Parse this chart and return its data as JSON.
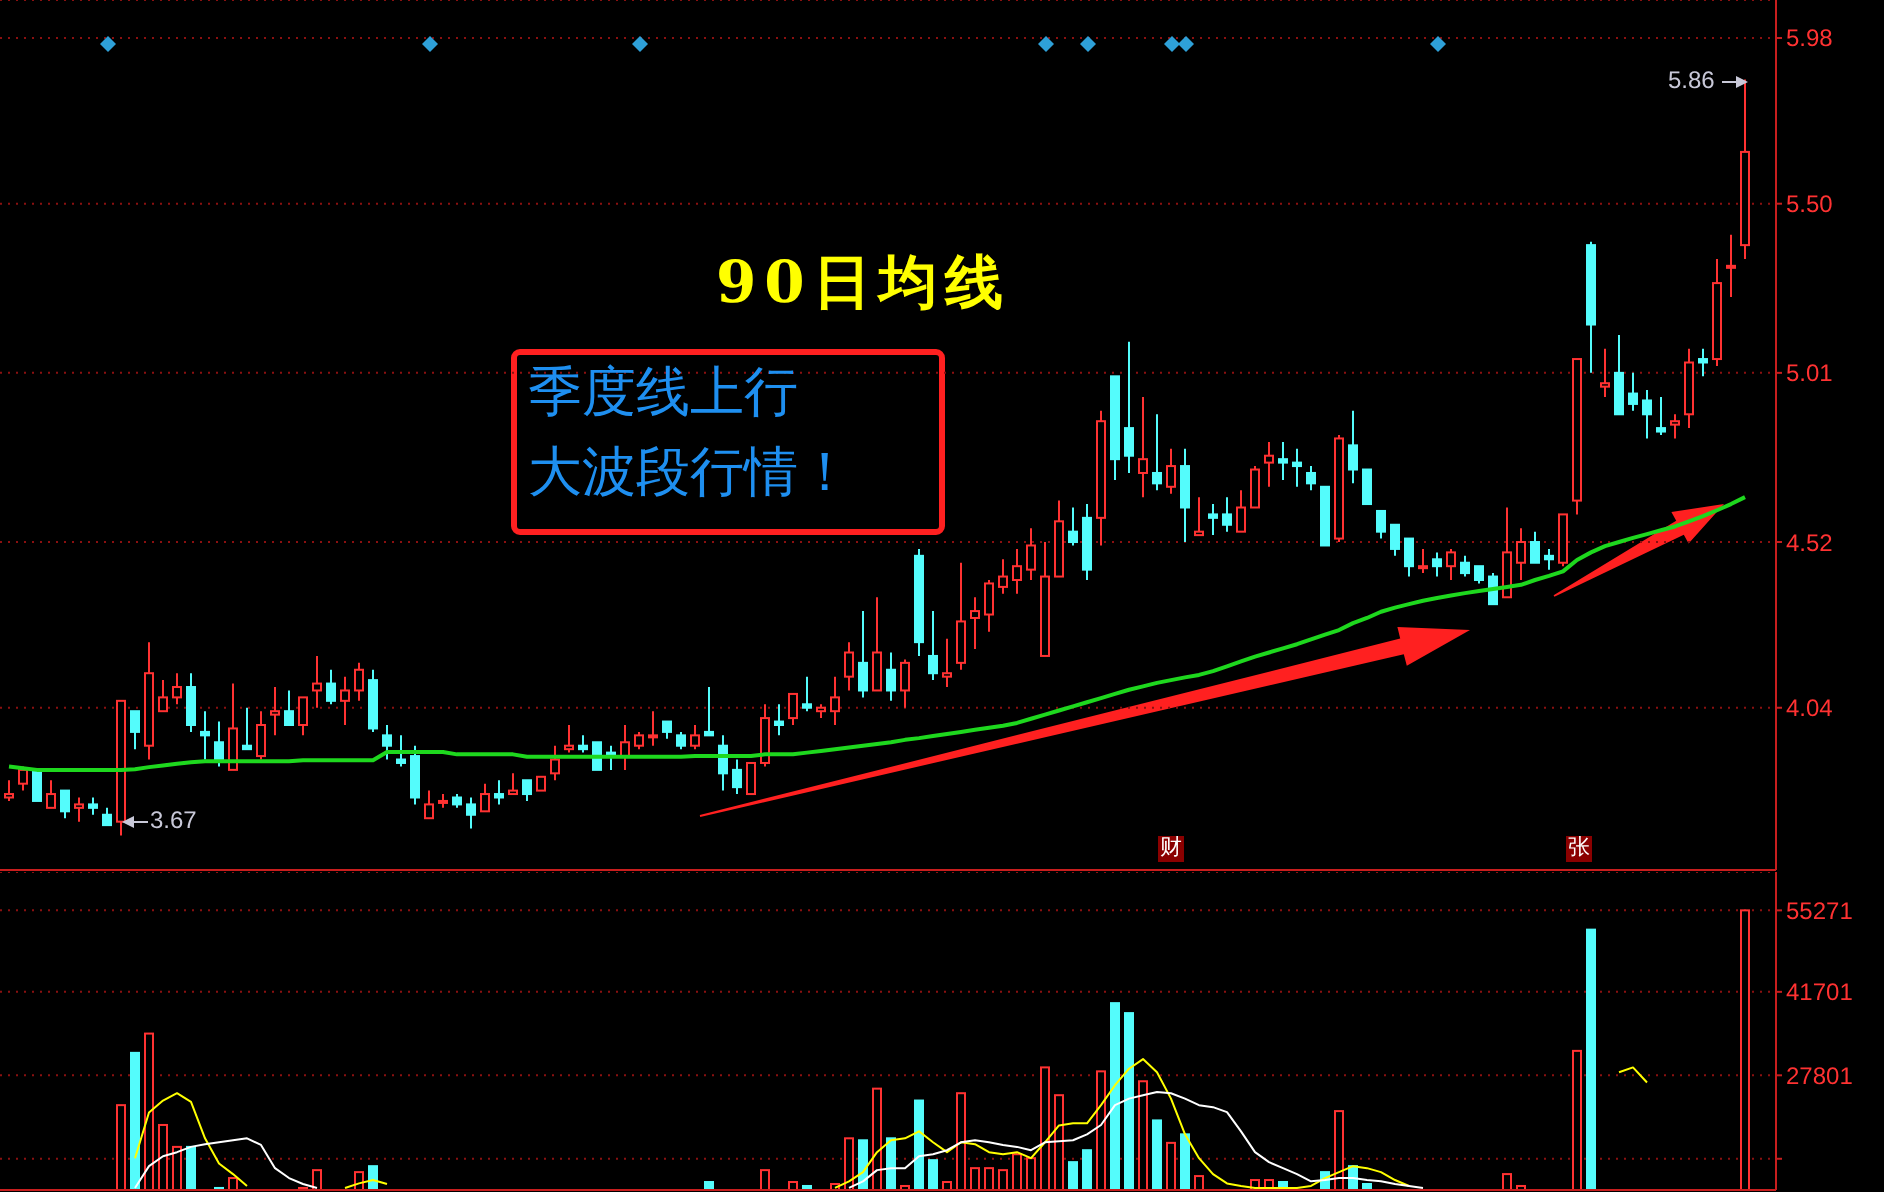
{
  "chart_data": [
    {
      "type": "candlestick",
      "categories": [
        null,
        null,
        null,
        null,
        null,
        null,
        null,
        null,
        null,
        null,
        null,
        null,
        null,
        null,
        null,
        null,
        null,
        null,
        null,
        null,
        null,
        null,
        null,
        null,
        null,
        null,
        null,
        null,
        null,
        null,
        null,
        null,
        null,
        null,
        null,
        null,
        null,
        null,
        null,
        null,
        null,
        null,
        null,
        null,
        null,
        null,
        null,
        null,
        null,
        null,
        null,
        null,
        null,
        null,
        null,
        null,
        null,
        null,
        null,
        null,
        null,
        null,
        null,
        null,
        null,
        null,
        null,
        null,
        null,
        null,
        null,
        null,
        null,
        null,
        null,
        null,
        null,
        null,
        null,
        null,
        null,
        null,
        null,
        null,
        null,
        null,
        null,
        null,
        null,
        null,
        null,
        null,
        null,
        null,
        null,
        null,
        null,
        null,
        null,
        null,
        null,
        null,
        null,
        null,
        null,
        null,
        null,
        null,
        null,
        null,
        null,
        null,
        null,
        null,
        null,
        null,
        null,
        null,
        null,
        null,
        null,
        null,
        null,
        null,
        null
      ],
      "ohlc": [
        [
          3.78,
          3.83,
          3.77,
          3.79
        ],
        [
          3.82,
          3.87,
          3.8,
          3.86
        ],
        [
          3.86,
          3.86,
          3.77,
          3.77
        ],
        [
          3.75,
          3.83,
          3.75,
          3.79
        ],
        [
          3.8,
          3.8,
          3.72,
          3.74
        ],
        [
          3.75,
          3.78,
          3.71,
          3.76
        ],
        [
          3.76,
          3.78,
          3.73,
          3.75
        ],
        [
          3.73,
          3.75,
          3.7,
          3.7
        ],
        [
          3.71,
          4.06,
          3.67,
          4.06
        ],
        [
          4.03,
          4.03,
          3.92,
          3.97
        ],
        [
          3.93,
          4.23,
          3.89,
          4.14
        ],
        [
          4.03,
          4.12,
          4.03,
          4.07
        ],
        [
          4.07,
          4.14,
          4.05,
          4.1
        ],
        [
          4.1,
          4.14,
          3.97,
          3.99
        ],
        [
          3.97,
          4.03,
          3.89,
          3.96
        ],
        [
          3.94,
          4.0,
          3.87,
          3.89
        ],
        [
          3.86,
          4.11,
          3.86,
          3.98
        ],
        [
          3.93,
          4.04,
          3.92,
          3.92
        ],
        [
          3.9,
          4.03,
          3.89,
          3.99
        ],
        [
          4.02,
          4.1,
          3.96,
          4.03
        ],
        [
          4.03,
          4.09,
          3.99,
          3.99
        ],
        [
          3.99,
          4.07,
          3.96,
          4.07
        ],
        [
          4.09,
          4.19,
          4.04,
          4.11
        ],
        [
          4.11,
          4.15,
          4.05,
          4.06
        ],
        [
          4.06,
          4.13,
          3.99,
          4.09
        ],
        [
          4.09,
          4.17,
          4.06,
          4.15
        ],
        [
          4.12,
          4.15,
          3.97,
          3.98
        ],
        [
          3.96,
          3.99,
          3.89,
          3.93
        ],
        [
          3.89,
          3.96,
          3.87,
          3.88
        ],
        [
          3.9,
          3.93,
          3.76,
          3.78
        ],
        [
          3.72,
          3.8,
          3.72,
          3.76
        ],
        [
          3.77,
          3.79,
          3.75,
          3.77
        ],
        [
          3.78,
          3.79,
          3.75,
          3.76
        ],
        [
          3.76,
          3.78,
          3.69,
          3.73
        ],
        [
          3.74,
          3.82,
          3.74,
          3.79
        ],
        [
          3.79,
          3.83,
          3.76,
          3.78
        ],
        [
          3.79,
          3.85,
          3.79,
          3.8
        ],
        [
          3.83,
          3.83,
          3.77,
          3.79
        ],
        [
          3.8,
          3.84,
          3.8,
          3.84
        ],
        [
          3.85,
          3.93,
          3.83,
          3.89
        ],
        [
          3.92,
          3.99,
          3.91,
          3.93
        ],
        [
          3.93,
          3.96,
          3.91,
          3.92
        ],
        [
          3.94,
          3.94,
          3.86,
          3.86
        ],
        [
          3.91,
          3.93,
          3.86,
          3.9
        ],
        [
          3.9,
          3.99,
          3.86,
          3.94
        ],
        [
          3.93,
          3.97,
          3.92,
          3.96
        ],
        [
          3.96,
          4.03,
          3.93,
          3.96
        ],
        [
          4.0,
          4.0,
          3.95,
          3.97
        ],
        [
          3.96,
          3.97,
          3.92,
          3.93
        ],
        [
          3.93,
          3.99,
          3.92,
          3.96
        ],
        [
          3.97,
          4.1,
          3.96,
          3.96
        ],
        [
          3.93,
          3.96,
          3.8,
          3.85
        ],
        [
          3.86,
          3.89,
          3.79,
          3.81
        ],
        [
          3.79,
          3.88,
          3.79,
          3.88
        ],
        [
          3.88,
          4.05,
          3.87,
          4.01
        ],
        [
          4.0,
          4.05,
          3.96,
          3.99
        ],
        [
          4.01,
          4.08,
          3.99,
          4.08
        ],
        [
          4.05,
          4.13,
          4.03,
          4.04
        ],
        [
          4.03,
          4.05,
          4.01,
          4.04
        ],
        [
          4.03,
          4.13,
          3.99,
          4.07
        ],
        [
          4.13,
          4.23,
          4.09,
          4.2
        ],
        [
          4.17,
          4.32,
          4.07,
          4.09
        ],
        [
          4.09,
          4.36,
          4.09,
          4.2
        ],
        [
          4.15,
          4.2,
          4.06,
          4.09
        ],
        [
          4.09,
          4.18,
          4.04,
          4.17
        ],
        [
          4.48,
          4.5,
          4.19,
          4.23
        ],
        [
          4.19,
          4.32,
          4.12,
          4.14
        ],
        [
          4.13,
          4.24,
          4.1,
          4.14
        ],
        [
          4.17,
          4.46,
          4.15,
          4.29
        ],
        [
          4.3,
          4.36,
          4.21,
          4.32
        ],
        [
          4.31,
          4.41,
          4.26,
          4.4
        ],
        [
          4.39,
          4.47,
          4.37,
          4.42
        ],
        [
          4.41,
          4.5,
          4.37,
          4.45
        ],
        [
          4.44,
          4.56,
          4.41,
          4.51
        ],
        [
          4.19,
          4.52,
          4.19,
          4.42
        ],
        [
          4.42,
          4.64,
          4.42,
          4.58
        ],
        [
          4.55,
          4.62,
          4.51,
          4.52
        ],
        [
          4.59,
          4.63,
          4.41,
          4.44
        ],
        [
          4.59,
          4.9,
          4.51,
          4.87
        ],
        [
          5.0,
          5.0,
          4.7,
          4.76
        ],
        [
          4.85,
          5.1,
          4.72,
          4.77
        ],
        [
          4.72,
          4.94,
          4.65,
          4.76
        ],
        [
          4.72,
          4.89,
          4.67,
          4.69
        ],
        [
          4.68,
          4.79,
          4.66,
          4.74
        ],
        [
          4.74,
          4.79,
          4.52,
          4.62
        ],
        [
          4.54,
          4.65,
          4.54,
          4.55
        ],
        [
          4.6,
          4.63,
          4.54,
          4.59
        ],
        [
          4.6,
          4.65,
          4.55,
          4.57
        ],
        [
          4.55,
          4.67,
          4.55,
          4.62
        ],
        [
          4.62,
          4.74,
          4.62,
          4.73
        ],
        [
          4.75,
          4.81,
          4.68,
          4.77
        ],
        [
          4.76,
          4.81,
          4.7,
          4.75
        ],
        [
          4.75,
          4.79,
          4.68,
          4.74
        ],
        [
          4.72,
          4.74,
          4.67,
          4.69
        ],
        [
          4.68,
          4.68,
          4.51,
          4.51
        ],
        [
          4.53,
          4.83,
          4.52,
          4.82
        ],
        [
          4.8,
          4.9,
          4.69,
          4.73
        ],
        [
          4.73,
          4.73,
          4.63,
          4.63
        ],
        [
          4.61,
          4.61,
          4.53,
          4.55
        ],
        [
          4.57,
          4.57,
          4.48,
          4.5
        ],
        [
          4.53,
          4.53,
          4.42,
          4.45
        ],
        [
          4.45,
          4.5,
          4.43,
          4.45
        ],
        [
          4.47,
          4.49,
          4.42,
          4.45
        ],
        [
          4.45,
          4.5,
          4.41,
          4.49
        ],
        [
          4.46,
          4.48,
          4.42,
          4.43
        ],
        [
          4.45,
          4.45,
          4.4,
          4.41
        ],
        [
          4.42,
          4.43,
          4.34,
          4.34
        ],
        [
          4.36,
          4.62,
          4.36,
          4.49
        ],
        [
          4.46,
          4.56,
          4.41,
          4.52
        ],
        [
          4.52,
          4.55,
          4.46,
          4.46
        ],
        [
          4.48,
          4.5,
          4.44,
          4.47
        ],
        [
          4.46,
          4.6,
          4.45,
          4.6
        ],
        [
          4.64,
          5.05,
          4.6,
          5.05
        ],
        [
          5.38,
          5.39,
          5.01,
          5.15
        ],
        [
          4.97,
          5.08,
          4.94,
          4.98
        ],
        [
          5.01,
          5.12,
          4.89,
          4.89
        ],
        [
          4.95,
          5.01,
          4.9,
          4.92
        ],
        [
          4.93,
          4.96,
          4.82,
          4.89
        ],
        [
          4.85,
          4.94,
          4.83,
          4.84
        ],
        [
          4.86,
          4.89,
          4.82,
          4.87
        ],
        [
          4.89,
          5.08,
          4.85,
          5.04
        ],
        [
          5.05,
          5.08,
          5.0,
          5.04
        ],
        [
          5.05,
          5.34,
          5.03,
          5.27
        ],
        [
          5.32,
          5.41,
          5.23,
          5.32
        ],
        [
          5.38,
          5.86,
          5.34,
          5.65
        ]
      ],
      "colors": [
        "#ff3232",
        "#ff3232",
        "#54fcfc",
        "#ff3232",
        "#54fcfc",
        "#ff3232",
        "#54fcfc",
        "#54fcfc",
        "#ff3232",
        "#54fcfc",
        "#ff3232",
        "#ff3232",
        "#ff3232",
        "#54fcfc",
        "#54fcfc",
        "#54fcfc",
        "#ff3232",
        "#54fcfc",
        "#ff3232",
        "#ff3232",
        "#54fcfc",
        "#ff3232",
        "#ff3232",
        "#54fcfc",
        "#ff3232",
        "#ff3232",
        "#54fcfc",
        "#54fcfc",
        "#54fcfc",
        "#54fcfc",
        "#ff3232",
        "#ff3232",
        "#54fcfc",
        "#54fcfc",
        "#ff3232",
        "#54fcfc",
        "#ff3232",
        "#54fcfc",
        "#ff3232",
        "#ff3232",
        "#ff3232",
        "#54fcfc",
        "#54fcfc",
        "#54fcfc",
        "#ff3232",
        "#ff3232",
        "#ff3232",
        "#54fcfc",
        "#54fcfc",
        "#ff3232",
        "#54fcfc",
        "#54fcfc",
        "#54fcfc",
        "#ff3232",
        "#ff3232",
        "#54fcfc",
        "#ff3232",
        "#54fcfc",
        "#ff3232",
        "#ff3232",
        "#ff3232",
        "#54fcfc",
        "#ff3232",
        "#54fcfc",
        "#ff3232",
        "#54fcfc",
        "#54fcfc",
        "#ff3232",
        "#ff3232",
        "#ff3232",
        "#ff3232",
        "#ff3232",
        "#ff3232",
        "#ff3232",
        "#ff3232",
        "#ff3232",
        "#54fcfc",
        "#54fcfc",
        "#ff3232",
        "#54fcfc",
        "#54fcfc",
        "#ff3232",
        "#54fcfc",
        "#ff3232",
        "#54fcfc",
        "#ff3232",
        "#54fcfc",
        "#54fcfc",
        "#ff3232",
        "#ff3232",
        "#ff3232",
        "#54fcfc",
        "#54fcfc",
        "#54fcfc",
        "#54fcfc",
        "#ff3232",
        "#54fcfc",
        "#54fcfc",
        "#54fcfc",
        "#54fcfc",
        "#54fcfc",
        "#ff3232",
        "#54fcfc",
        "#ff3232",
        "#54fcfc",
        "#54fcfc",
        "#54fcfc",
        "#ff3232",
        "#ff3232",
        "#54fcfc",
        "#54fcfc",
        "#ff3232",
        "#ff3232",
        "#54fcfc",
        "#ff3232",
        "#54fcfc",
        "#54fcfc",
        "#54fcfc",
        "#54fcfc",
        "#ff3232",
        "#ff3232",
        "#54fcfc",
        "#ff3232",
        "#ff3232",
        "#ff3232"
      ],
      "series": [
        {
          "type": "line",
          "color": "#1ed81e",
          "values": [
            3.87,
            3.865,
            3.86,
            3.86,
            3.86,
            3.86,
            3.86,
            3.86,
            3.86,
            3.862,
            3.868,
            3.873,
            3.878,
            3.882,
            3.885,
            3.885,
            3.885,
            3.885,
            3.885,
            3.885,
            3.885,
            3.888,
            3.888,
            3.888,
            3.888,
            3.888,
            3.888,
            3.912,
            3.912,
            3.912,
            3.912,
            3.912,
            3.905,
            3.905,
            3.905,
            3.905,
            3.905,
            3.898,
            3.898,
            3.898,
            3.898,
            3.898,
            3.898,
            3.898,
            3.898,
            3.898,
            3.898,
            3.898,
            3.898,
            3.9,
            3.9,
            3.9,
            3.9,
            3.9,
            3.905,
            3.905,
            3.905,
            3.91,
            3.915,
            3.92,
            3.925,
            3.93,
            3.935,
            3.94,
            3.947,
            3.952,
            3.958,
            3.964,
            3.97,
            3.976,
            3.982,
            3.988,
            3.996,
            4.008,
            4.02,
            4.032,
            4.044,
            4.056,
            4.068,
            4.08,
            4.092,
            4.102,
            4.112,
            4.12,
            4.128,
            4.135,
            4.146,
            4.16,
            4.174,
            4.188,
            4.2,
            4.212,
            4.224,
            4.238,
            4.252,
            4.265,
            4.285,
            4.3,
            4.318,
            4.33,
            4.34,
            4.35,
            4.358,
            4.365,
            4.372,
            4.378,
            4.384,
            4.39,
            4.396,
            4.41,
            4.422,
            4.435,
            4.468,
            4.49,
            4.508,
            4.52,
            4.532,
            4.543,
            4.554,
            4.565,
            4.58,
            4.595,
            4.612,
            4.63,
            4.65
          ]
        }
      ],
      "ylim": [
        3.57,
        6.09
      ],
      "yticks": [
        4.04,
        4.52,
        5.01,
        {
          "value": 5.5,
          "label": "5.50"
        },
        5.98
      ],
      "grid": "y",
      "annotations": [
        "90日均线",
        "季度线上行",
        "大波段行情！",
        "财",
        "张",
        "3.67",
        "5.86"
      ]
    },
    {
      "type": "bar",
      "categories": [
        null,
        null,
        null,
        null,
        null,
        null,
        null,
        null,
        null,
        null,
        null,
        null,
        null,
        null,
        null,
        null,
        null,
        null,
        null,
        null,
        null,
        null,
        null,
        null,
        null,
        null,
        null,
        null,
        null,
        null,
        null,
        null,
        null,
        null,
        null,
        null,
        null,
        null,
        null,
        null,
        null,
        null,
        null,
        null,
        null,
        null,
        null,
        null,
        null,
        null,
        null,
        null,
        null,
        null,
        null,
        null,
        null,
        null,
        null,
        null,
        null,
        null,
        null,
        null,
        null,
        null,
        null,
        null,
        null,
        null,
        null,
        null,
        null,
        null,
        null,
        null,
        null,
        null,
        null,
        null,
        null,
        null,
        null,
        null,
        null,
        null,
        null,
        null,
        null,
        null,
        null,
        null,
        null,
        null,
        null,
        null,
        null,
        null,
        null,
        null,
        null,
        null,
        null,
        null,
        null,
        null,
        null,
        null,
        null,
        null,
        null,
        null,
        null,
        null,
        null,
        null,
        null,
        null,
        null,
        null,
        null,
        null,
        null,
        null,
        null
      ],
      "series": [
        {
          "colors": [
            null,
            null,
            null,
            null,
            null,
            null,
            null,
            null,
            "#ff3232",
            "#54fcfc",
            "#ff3232",
            "#ff3232",
            "#ff3232",
            "#54fcfc",
            null,
            "#54fcfc",
            "#ff3232",
            null,
            null,
            null,
            null,
            "#ff3232",
            "#ff3232",
            null,
            null,
            "#ff3232",
            "#54fcfc",
            null,
            null,
            null,
            null,
            null,
            null,
            null,
            null,
            null,
            null,
            null,
            null,
            null,
            null,
            null,
            null,
            null,
            null,
            null,
            null,
            null,
            null,
            null,
            "#54fcfc",
            null,
            null,
            null,
            "#ff3232",
            null,
            "#ff3232",
            "#54fcfc",
            null,
            "#ff3232",
            "#ff3232",
            "#54fcfc",
            "#ff3232",
            "#54fcfc",
            "#ff3232",
            "#54fcfc",
            "#54fcfc",
            "#ff3232",
            "#ff3232",
            "#ff3232",
            "#ff3232",
            "#ff3232",
            "#ff3232",
            "#ff3232",
            "#ff3232",
            "#ff3232",
            "#54fcfc",
            "#54fcfc",
            "#ff3232",
            "#54fcfc",
            "#54fcfc",
            "#ff3232",
            "#54fcfc",
            "#ff3232",
            "#54fcfc",
            "#ff3232",
            null,
            null,
            null,
            "#ff3232",
            "#ff3232",
            "#54fcfc",
            null,
            null,
            "#54fcfc",
            "#ff3232",
            "#54fcfc",
            "#54fcfc",
            null,
            null,
            null,
            null,
            null,
            null,
            null,
            null,
            null,
            "#ff3232",
            "#ff3232",
            null,
            null,
            null,
            "#ff3232",
            "#54fcfc",
            null,
            null,
            null,
            null,
            null,
            null,
            null,
            null,
            null,
            null,
            "#ff3232"
          ],
          "values": [
            null,
            null,
            null,
            null,
            null,
            null,
            null,
            null,
            22830,
            31540,
            34750,
            19530,
            15880,
            15880,
            null,
            9040,
            10690,
            null,
            null,
            null,
            null,
            9040,
            12010,
            null,
            null,
            11680,
            12670,
            null,
            null,
            null,
            null,
            null,
            null,
            null,
            null,
            null,
            null,
            null,
            null,
            null,
            null,
            null,
            null,
            null,
            null,
            null,
            null,
            null,
            null,
            null,
            10030,
            null,
            null,
            null,
            12010,
            null,
            10030,
            9370,
            null,
            9700,
            17310,
            16980,
            25580,
            17310,
            9370,
            23600,
            13670,
            10030,
            24820,
            12340,
            12340,
            12010,
            14660,
            14000,
            29120,
            24490,
            13340,
            15330,
            28460,
            39820,
            38160,
            26810,
            20290,
            16550,
            17970,
            11020,
            null,
            null,
            null,
            10360,
            10360,
            10030,
            null,
            null,
            11680,
            21840,
            12670,
            9700,
            null,
            null,
            null,
            null,
            null,
            null,
            null,
            null,
            null,
            11350,
            9370,
            null,
            null,
            null,
            31870,
            52060,
            null,
            null,
            null,
            null,
            null,
            null,
            null,
            null,
            null,
            null,
            55271
          ]
        },
        {
          "type": "line",
          "color": "#ffff00",
          "values": [
            null,
            null,
            null,
            null,
            null,
            null,
            null,
            null,
            null,
            14000,
            21600,
            23600,
            24820,
            23380,
            17310,
            13120,
            11350,
            9370,
            null,
            null,
            null,
            null,
            null,
            null,
            9040,
            9800,
            10360,
            9700,
            null,
            null,
            null,
            null,
            null,
            null,
            null,
            null,
            null,
            null,
            null,
            null,
            null,
            null,
            null,
            null,
            null,
            null,
            null,
            null,
            null,
            null,
            null,
            null,
            null,
            null,
            null,
            null,
            null,
            null,
            null,
            9040,
            10140,
            11680,
            15000,
            16980,
            17310,
            18470,
            16650,
            15000,
            16650,
            16330,
            15000,
            14660,
            15000,
            14000,
            16650,
            19460,
            19800,
            19800,
            22830,
            26150,
            28900,
            30500,
            28300,
            23920,
            17970,
            14000,
            11350,
            9800,
            9370,
            9040,
            9040,
            9040,
            9040,
            9370,
            10690,
            11680,
            12670,
            12340,
            11680,
            10360,
            9370,
            null,
            null,
            null,
            null,
            null,
            null,
            null,
            null,
            null,
            null,
            null,
            null,
            null,
            null,
            28300,
            29120,
            26600,
            null,
            null,
            null,
            null,
            null,
            null,
            null
          ]
        },
        {
          "type": "line",
          "color": "#ffffff",
          "values": [
            null,
            null,
            null,
            null,
            null,
            null,
            null,
            null,
            null,
            9040,
            12670,
            14330,
            15000,
            15880,
            16330,
            16650,
            16980,
            17310,
            16200,
            12340,
            10690,
            9700,
            9040,
            null,
            null,
            null,
            null,
            null,
            null,
            null,
            null,
            null,
            null,
            null,
            null,
            null,
            null,
            null,
            null,
            null,
            null,
            null,
            null,
            null,
            null,
            null,
            null,
            null,
            null,
            null,
            null,
            null,
            null,
            null,
            null,
            null,
            null,
            null,
            null,
            null,
            9040,
            10140,
            12010,
            12340,
            12340,
            14330,
            14660,
            15330,
            16650,
            16980,
            16650,
            16200,
            15880,
            15330,
            16650,
            16800,
            16980,
            17970,
            19530,
            22830,
            23920,
            24490,
            25030,
            24820,
            23920,
            22830,
            22500,
            21670,
            18470,
            15000,
            13340,
            12340,
            11350,
            10140,
            10360,
            10690,
            10690,
            10360,
            10140,
            9700,
            9370,
            9040,
            null,
            null,
            null,
            null,
            null,
            null,
            null,
            null,
            null,
            null,
            null,
            null,
            null,
            null,
            null,
            null,
            null,
            null,
            null,
            null,
            null,
            null,
            null
          ]
        }
      ],
      "ylim": [
        8700,
        61660
      ],
      "yticks": [
        {
          "value": 13900,
          "label": null
        },
        27801,
        41701,
        55271
      ],
      "grid": "y"
    }
  ]
}
